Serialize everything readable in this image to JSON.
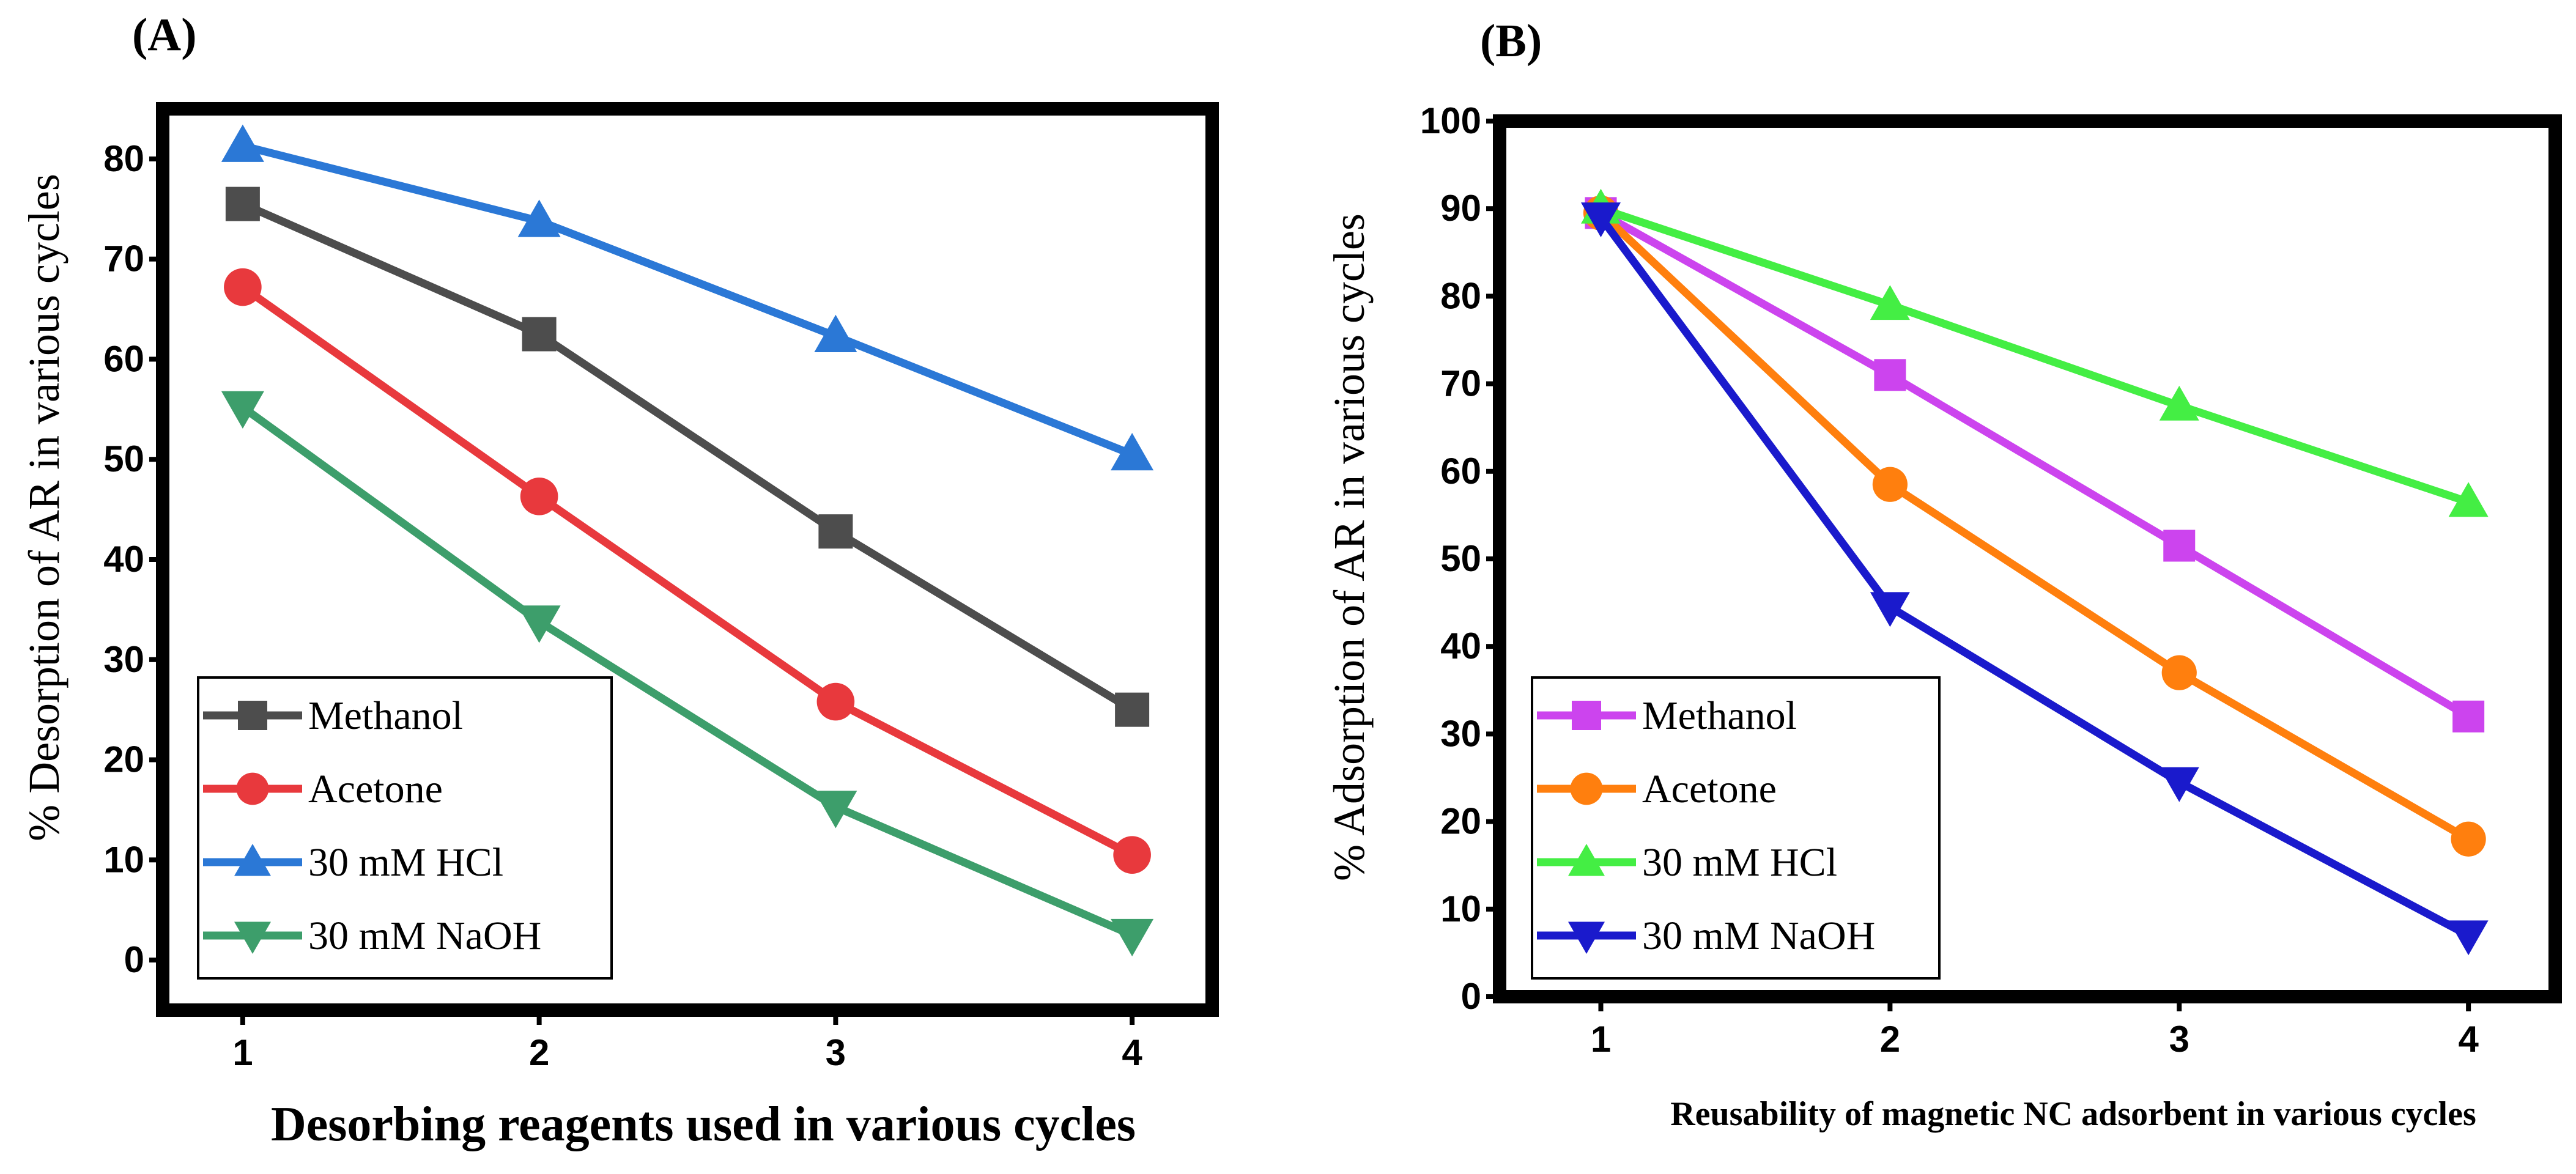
{
  "panels": {
    "a": {
      "label": "(A)"
    },
    "b": {
      "label": "(B)"
    }
  },
  "chart_data": [
    {
      "id": "a",
      "type": "line",
      "title": "",
      "xlabel": "Desorbing reagents used in various cycles",
      "ylabel": "% Desorption of AR in various cycles",
      "x": [
        1,
        2,
        3,
        4
      ],
      "xticks": [
        "1",
        "2",
        "3",
        "4"
      ],
      "xlim": [
        0.73,
        4.27
      ],
      "ylim": [
        -5,
        85
      ],
      "yticks": [
        0,
        10,
        20,
        30,
        40,
        50,
        60,
        70,
        80
      ],
      "legend_position": "bottom-left",
      "series": [
        {
          "name": "Methanol",
          "marker": "square",
          "color": "#4d4d4d",
          "values": [
            75.5,
            62.5,
            42.8,
            25
          ]
        },
        {
          "name": "Acetone",
          "marker": "circle",
          "color": "#e8393d",
          "values": [
            67.2,
            46.3,
            25.8,
            10.5
          ]
        },
        {
          "name": "30 mM HCl",
          "marker": "triangle-up",
          "color": "#2b78d6",
          "values": [
            81.3,
            73.8,
            62.3,
            50.5
          ]
        },
        {
          "name": "30 mM NaOH",
          "marker": "triangle-down",
          "color": "#3d9e6b",
          "values": [
            55.2,
            33.8,
            15.3,
            2.5
          ]
        }
      ]
    },
    {
      "id": "b",
      "type": "line",
      "title": "",
      "xlabel": "Reusability of magnetic NC adsorbent in various cycles",
      "ylabel": "% Adsorption of AR in various cycles",
      "x": [
        1,
        2,
        3,
        4
      ],
      "xticks": [
        "1",
        "2",
        "3",
        "4"
      ],
      "xlim": [
        0.65,
        4.3
      ],
      "ylim": [
        0,
        100
      ],
      "yticks": [
        0,
        10,
        20,
        30,
        40,
        50,
        60,
        70,
        80,
        90,
        100
      ],
      "legend_position": "bottom-left",
      "series": [
        {
          "name": "Methanol",
          "marker": "square",
          "color": "#cc44ee",
          "values": [
            89.5,
            71,
            51.5,
            32
          ]
        },
        {
          "name": "Acetone",
          "marker": "circle",
          "color": "#ff7f0e",
          "values": [
            89.5,
            58.5,
            37,
            18
          ]
        },
        {
          "name": "30 mM HCl",
          "marker": "triangle-up",
          "color": "#44ee44",
          "values": [
            90,
            79,
            67.5,
            56.5
          ]
        },
        {
          "name": "30 mM NaOH",
          "marker": "triangle-down",
          "color": "#1a1acc",
          "values": [
            89,
            44.5,
            24.5,
            7
          ]
        }
      ]
    }
  ]
}
